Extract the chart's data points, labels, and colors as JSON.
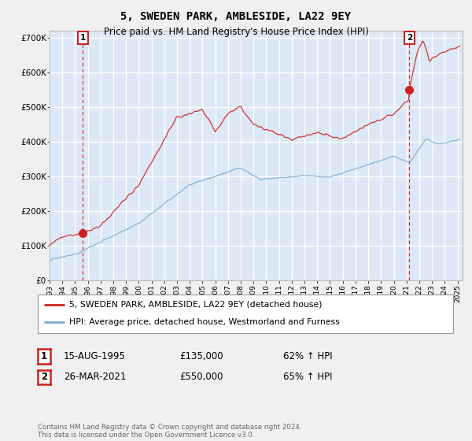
{
  "title": "5, SWEDEN PARK, AMBLESIDE, LA22 9EY",
  "subtitle": "Price paid vs. HM Land Registry's House Price Index (HPI)",
  "ylabel_ticks": [
    "£0",
    "£100K",
    "£200K",
    "£300K",
    "£400K",
    "£500K",
    "£600K",
    "£700K"
  ],
  "ytick_values": [
    0,
    100000,
    200000,
    300000,
    400000,
    500000,
    600000,
    700000
  ],
  "ylim": [
    0,
    720000
  ],
  "xlim_start": 1993.0,
  "xlim_end": 2025.4,
  "hpi_color": "#7aadd4",
  "price_color": "#cc2222",
  "sale1_date": 1995.62,
  "sale1_price": 135000,
  "sale2_date": 2021.23,
  "sale2_price": 550000,
  "legend_entries": [
    "5, SWEDEN PARK, AMBLESIDE, LA22 9EY (detached house)",
    "HPI: Average price, detached house, Westmorland and Furness"
  ],
  "annotation1_date": "15-AUG-1995",
  "annotation1_price": "£135,000",
  "annotation1_pct": "62% ↑ HPI",
  "annotation2_date": "26-MAR-2021",
  "annotation2_price": "£550,000",
  "annotation2_pct": "65% ↑ HPI",
  "footer": "Contains HM Land Registry data © Crown copyright and database right 2024.\nThis data is licensed under the Open Government Licence v3.0.",
  "background_color": "#f0f0f0",
  "plot_bg_color": "#dce8f5"
}
